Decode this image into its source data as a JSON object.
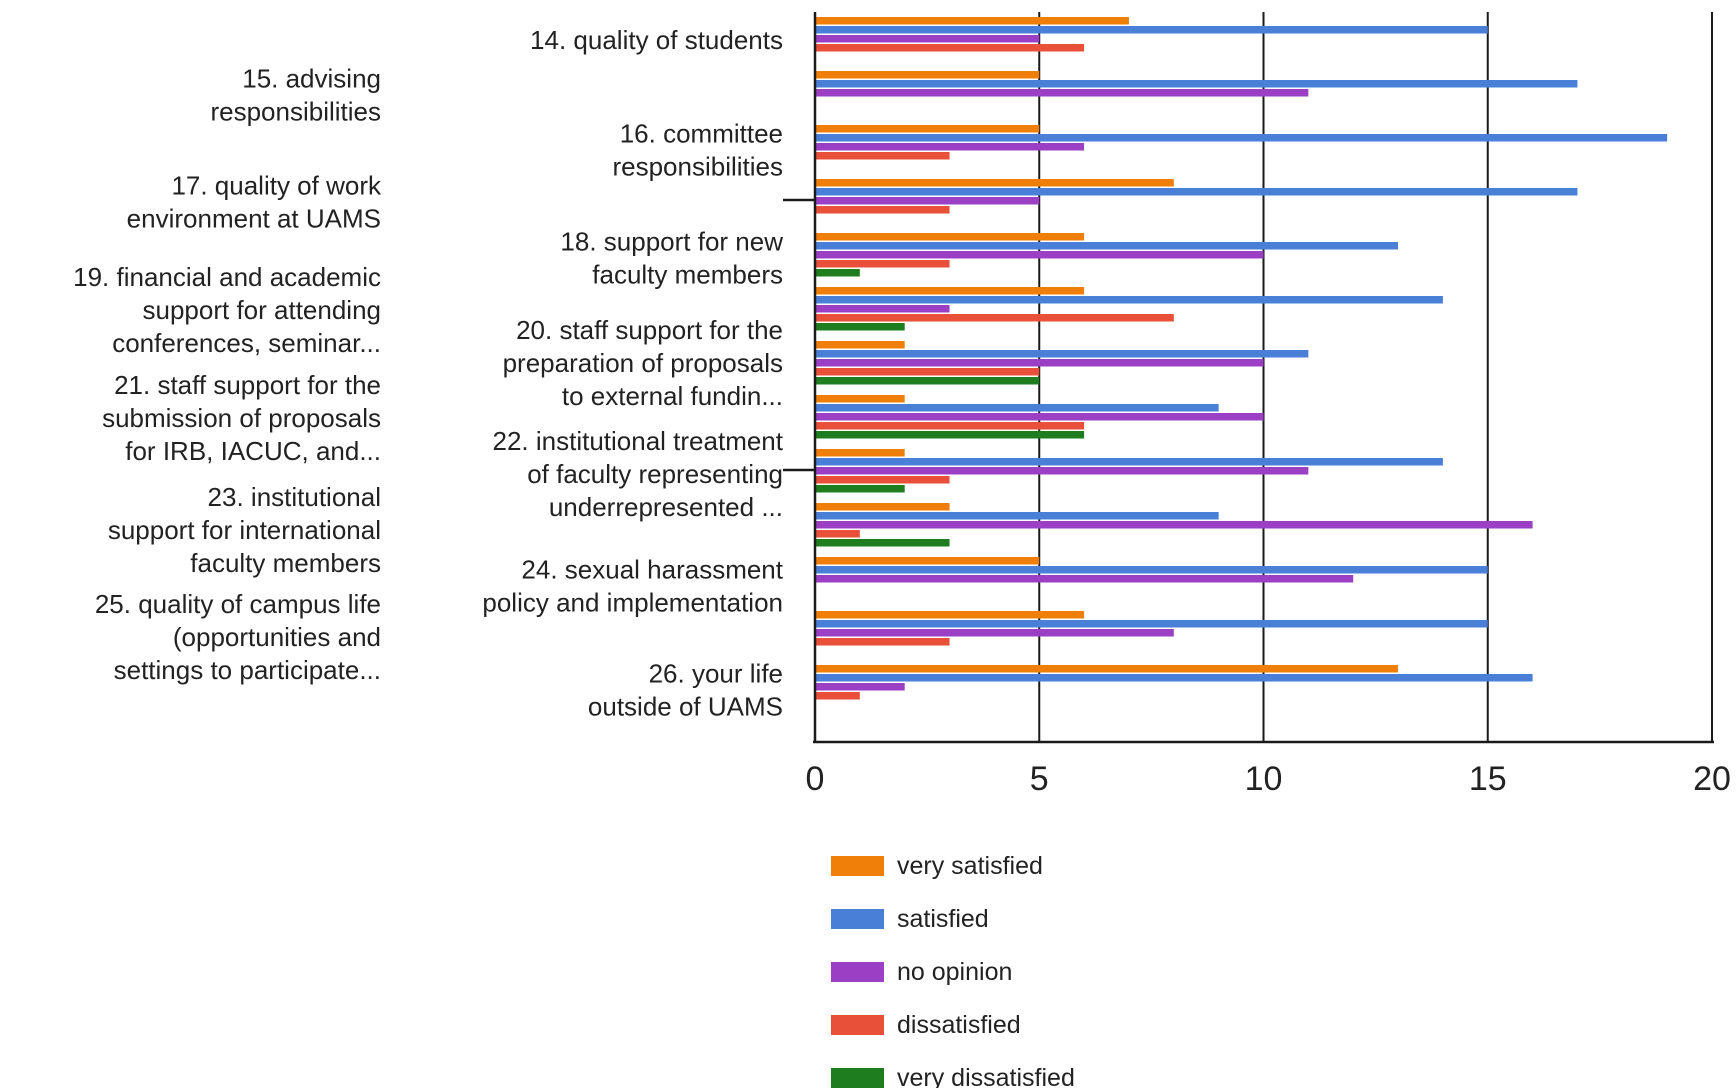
{
  "chart_data": {
    "type": "bar",
    "orientation": "horizontal",
    "title": "",
    "xlabel": "",
    "ylabel": "",
    "xlim": [
      0,
      20
    ],
    "x_ticks": [
      "0",
      "5",
      "10",
      "15",
      "20"
    ],
    "grid": true,
    "legend_position": "bottom",
    "categories": [
      "14. quality of students",
      "15. advising responsibilities",
      "16. committee responsibilities",
      "17. quality of work environment at UAMS",
      "18. support for new faculty members",
      "19. financial and academic support for attending conferences, seminar...",
      "20. staff support for the preparation of proposals to external fundin...",
      "21. staff support for the submission of proposals for IRB, IACUC, and...",
      "22. institutional treatment of faculty representing underrepresented ...",
      "23. institutional support for international faculty members",
      "24. sexual harassment policy and implementation",
      "25. quality of campus life (opportunities and settings to participate...",
      "26. your life outside of UAMS"
    ],
    "category_label_lines": [
      [
        "14. quality of students"
      ],
      [
        "15. advising",
        "responsibilities"
      ],
      [
        "16. committee",
        "responsibilities"
      ],
      [
        "17. quality of work",
        "environment at UAMS"
      ],
      [
        "18. support for new",
        "faculty members"
      ],
      [
        "19. financial and academic",
        "support for attending",
        "conferences, seminar..."
      ],
      [
        "20. staff support for the",
        "preparation of proposals",
        "to external fundin..."
      ],
      [
        "21. staff support for the",
        "submission of proposals",
        "for IRB, IACUC, and..."
      ],
      [
        "22. institutional treatment",
        "of faculty representing",
        "underrepresented ..."
      ],
      [
        "23. institutional",
        "support for international",
        "faculty members"
      ],
      [
        "24. sexual harassment",
        "policy and implementation"
      ],
      [
        "25. quality of campus life",
        "(opportunities and",
        "settings to participate..."
      ],
      [
        "26. your life",
        "outside of UAMS"
      ]
    ],
    "series": [
      {
        "name": "very satisfied",
        "color": "#f07f09",
        "values": [
          7,
          5,
          5,
          8,
          6,
          6,
          2,
          2,
          2,
          3,
          5,
          6,
          13
        ]
      },
      {
        "name": "satisfied",
        "color": "#4a7fd8",
        "values": [
          15,
          17,
          19,
          17,
          13,
          14,
          11,
          9,
          14,
          9,
          15,
          15,
          16
        ]
      },
      {
        "name": "no opinion",
        "color": "#9b3fc4",
        "values": [
          5,
          11,
          6,
          5,
          10,
          3,
          10,
          10,
          11,
          16,
          12,
          8,
          2
        ]
      },
      {
        "name": "dissatisfied",
        "color": "#e8503a",
        "values": [
          6,
          0,
          3,
          3,
          3,
          8,
          5,
          6,
          3,
          1,
          0,
          3,
          1
        ]
      },
      {
        "name": "very dissatisfied",
        "color": "#1e7d1e",
        "values": [
          0,
          0,
          0,
          0,
          1,
          2,
          5,
          6,
          2,
          3,
          0,
          0,
          0
        ]
      }
    ]
  }
}
